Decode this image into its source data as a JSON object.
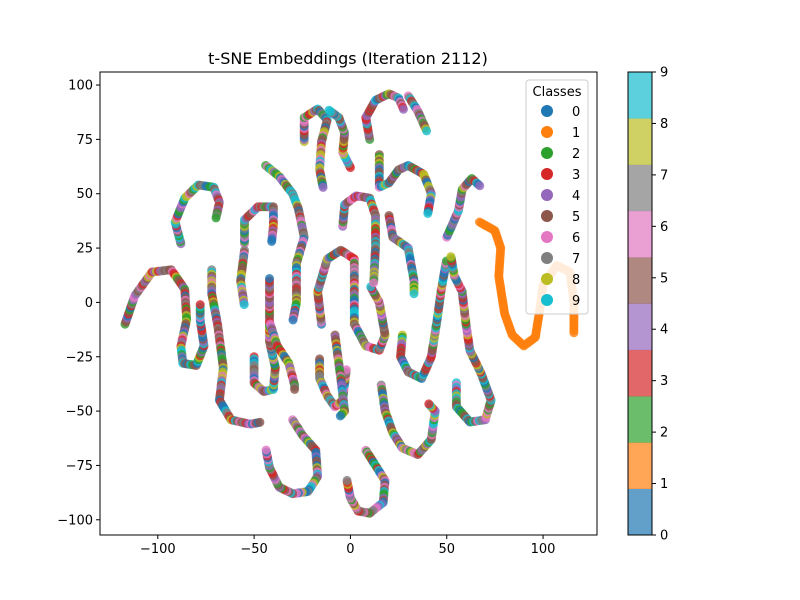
{
  "chart_data": {
    "type": "scatter",
    "title": "t-SNE Embeddings (Iteration 2112)",
    "xlabel": "",
    "ylabel": "",
    "xlim": [
      -130,
      128
    ],
    "ylim": [
      -107,
      106
    ],
    "x_ticks": [
      -100,
      -50,
      0,
      50,
      100
    ],
    "y_ticks": [
      -100,
      -75,
      -50,
      -25,
      0,
      25,
      50,
      75,
      100
    ],
    "grid": false,
    "legend": {
      "title": "Classes",
      "placement": "top-right",
      "entries": [
        "0",
        "1",
        "2",
        "3",
        "4",
        "5",
        "6",
        "7",
        "8",
        "9"
      ]
    },
    "colors": [
      "#1f77b4",
      "#ff7f0e",
      "#2ca02c",
      "#d62728",
      "#9467bd",
      "#8c564b",
      "#e377c2",
      "#7f7f7f",
      "#bcbd22",
      "#17becf"
    ],
    "colorbar": {
      "min": 0,
      "max": 9,
      "ticks": [
        "0",
        "1",
        "2",
        "3",
        "4",
        "5",
        "6",
        "7",
        "8",
        "9"
      ]
    },
    "curves": [
      {
        "points": [
          [
            -117,
            -10
          ],
          [
            -112,
            3
          ],
          [
            -103,
            14
          ],
          [
            -93,
            15
          ],
          [
            -86,
            6
          ],
          [
            -85,
            -8
          ],
          [
            -88,
            -20
          ],
          [
            -87,
            -28
          ],
          [
            -80,
            -29
          ],
          [
            -76,
            -20
          ],
          [
            -78,
            -8
          ],
          [
            -78,
            0
          ]
        ],
        "class": "mixed"
      },
      {
        "points": [
          [
            -88,
            27
          ],
          [
            -91,
            37
          ],
          [
            -86,
            48
          ],
          [
            -79,
            54
          ],
          [
            -71,
            53
          ],
          [
            -68,
            46
          ],
          [
            -70,
            38
          ]
        ],
        "class": "mixed"
      },
      {
        "points": [
          [
            -72,
            15
          ],
          [
            -72,
            4
          ],
          [
            -69,
            -10
          ],
          [
            -66,
            -30
          ],
          [
            -68,
            -45
          ],
          [
            -62,
            -54
          ],
          [
            -52,
            -56
          ],
          [
            -46,
            -55
          ]
        ],
        "class": "mixed"
      },
      {
        "points": [
          [
            -55,
            27
          ],
          [
            -55,
            38
          ],
          [
            -48,
            44
          ],
          [
            -40,
            44
          ],
          [
            -40,
            35
          ],
          [
            -41,
            27
          ]
        ],
        "class": "mixed"
      },
      {
        "points": [
          [
            -55,
            24
          ],
          [
            -57,
            10
          ],
          [
            -55,
            -2
          ]
        ],
        "class": "mixed"
      },
      {
        "points": [
          [
            -50,
            -25
          ],
          [
            -50,
            -37
          ],
          [
            -45,
            -41
          ],
          [
            -40,
            -40
          ],
          [
            -39,
            -30
          ],
          [
            -42,
            -18
          ],
          [
            -42,
            -4
          ],
          [
            -42,
            12
          ]
        ],
        "class": "mixed"
      },
      {
        "points": [
          [
            -44,
            63
          ],
          [
            -37,
            58
          ],
          [
            -30,
            50
          ],
          [
            -27,
            43
          ],
          [
            -24,
            30
          ],
          [
            -28,
            18
          ],
          [
            -28,
            0
          ],
          [
            -30,
            -9
          ]
        ],
        "class": "mixed"
      },
      {
        "points": [
          [
            -42,
            -9
          ],
          [
            -38,
            -20
          ],
          [
            -32,
            -28
          ],
          [
            -29,
            -38
          ],
          [
            -29,
            -41
          ]
        ],
        "class": "mixed"
      },
      {
        "points": [
          [
            -30,
            -54
          ],
          [
            -25,
            -61
          ],
          [
            -18,
            -68
          ],
          [
            -17,
            -80
          ],
          [
            -22,
            -87
          ],
          [
            -30,
            -88
          ],
          [
            -37,
            -85
          ],
          [
            -42,
            -76
          ],
          [
            -44,
            -67
          ]
        ],
        "class": "mixed"
      },
      {
        "points": [
          [
            -24,
            74
          ],
          [
            -24,
            85
          ],
          [
            -17,
            89
          ],
          [
            -12,
            84
          ],
          [
            -15,
            74
          ],
          [
            -16,
            61
          ],
          [
            -14,
            52
          ]
        ],
        "class": "mixed"
      },
      {
        "points": [
          [
            -16,
            -26
          ],
          [
            -16,
            -35
          ],
          [
            -12,
            -43
          ],
          [
            -8,
            -48
          ],
          [
            -4,
            -45
          ],
          [
            -2,
            -30
          ]
        ],
        "class": "mixed"
      },
      {
        "points": [
          [
            -15,
            -10
          ],
          [
            -17,
            5
          ],
          [
            -12,
            20
          ],
          [
            -5,
            24
          ],
          [
            2,
            20
          ],
          [
            2,
            5
          ],
          [
            2,
            -10
          ],
          [
            8,
            -20
          ],
          [
            15,
            -22
          ],
          [
            18,
            -15
          ],
          [
            15,
            0
          ],
          [
            10,
            8
          ]
        ],
        "class": "mixed"
      },
      {
        "points": [
          [
            0,
            62
          ],
          [
            -4,
            69
          ],
          [
            -3,
            78
          ],
          [
            -6,
            85
          ],
          [
            -12,
            89
          ]
        ],
        "class": "mixed"
      },
      {
        "points": [
          [
            -4,
            35
          ],
          [
            -3,
            45
          ],
          [
            3,
            49
          ],
          [
            10,
            48
          ],
          [
            13,
            40
          ],
          [
            13,
            25
          ],
          [
            12,
            8
          ]
        ],
        "class": "mixed"
      },
      {
        "points": [
          [
            -8,
            -15
          ],
          [
            -5,
            -35
          ],
          [
            -3,
            -50
          ],
          [
            -6,
            -53
          ]
        ],
        "class": "mixed"
      },
      {
        "points": [
          [
            8,
            -68
          ],
          [
            13,
            -75
          ],
          [
            18,
            -82
          ],
          [
            17,
            -92
          ],
          [
            10,
            -97
          ],
          [
            4,
            -96
          ],
          [
            0,
            -90
          ],
          [
            -2,
            -81
          ]
        ],
        "class": "mixed"
      },
      {
        "points": [
          [
            16,
            -38
          ],
          [
            18,
            -50
          ],
          [
            22,
            -60
          ],
          [
            27,
            -67
          ],
          [
            35,
            -70
          ],
          [
            42,
            -63
          ],
          [
            44,
            -50
          ],
          [
            40,
            -46
          ]
        ],
        "class": "mixed"
      },
      {
        "points": [
          [
            10,
            75
          ],
          [
            8,
            85
          ],
          [
            13,
            93
          ],
          [
            20,
            96
          ],
          [
            25,
            94
          ],
          [
            28,
            88
          ]
        ],
        "class": "mixed"
      },
      {
        "points": [
          [
            30,
            95
          ],
          [
            35,
            88
          ],
          [
            40,
            78
          ]
        ],
        "class": "mixed"
      },
      {
        "points": [
          [
            15,
            68
          ],
          [
            15,
            53
          ],
          [
            20,
            55
          ],
          [
            25,
            61
          ],
          [
            30,
            63
          ],
          [
            38,
            59
          ],
          [
            42,
            50
          ],
          [
            40,
            40
          ]
        ],
        "class": "mixed"
      },
      {
        "points": [
          [
            20,
            40
          ],
          [
            22,
            30
          ],
          [
            30,
            25
          ],
          [
            33,
            10
          ],
          [
            33,
            3
          ]
        ],
        "class": "mixed"
      },
      {
        "points": [
          [
            27,
            -15
          ],
          [
            26,
            -25
          ],
          [
            30,
            -32
          ],
          [
            37,
            -35
          ],
          [
            42,
            -25
          ],
          [
            45,
            -8
          ],
          [
            47,
            5
          ],
          [
            50,
            20
          ]
        ],
        "class": "mixed"
      },
      {
        "points": [
          [
            50,
            30
          ],
          [
            56,
            42
          ],
          [
            58,
            52
          ],
          [
            63,
            57
          ],
          [
            68,
            53
          ]
        ],
        "class": "mixed"
      },
      {
        "points": [
          [
            55,
            -37
          ],
          [
            55,
            -48
          ],
          [
            62,
            -55
          ],
          [
            70,
            -54
          ],
          [
            73,
            -45
          ],
          [
            68,
            -33
          ],
          [
            62,
            -22
          ],
          [
            60,
            -10
          ],
          [
            58,
            5
          ],
          [
            54,
            12
          ],
          [
            52,
            22
          ]
        ],
        "class": "mixed"
      },
      {
        "points": [
          [
            67,
            37
          ],
          [
            75,
            33
          ],
          [
            78,
            25
          ],
          [
            77,
            12
          ],
          [
            80,
            -5
          ],
          [
            84,
            -15
          ],
          [
            90,
            -20
          ],
          [
            96,
            -16
          ],
          [
            98,
            -5
          ],
          [
            100,
            8
          ],
          [
            107,
            17
          ],
          [
            114,
            14
          ],
          [
            116,
            0
          ],
          [
            116,
            -15
          ]
        ],
        "class": "1"
      }
    ]
  }
}
